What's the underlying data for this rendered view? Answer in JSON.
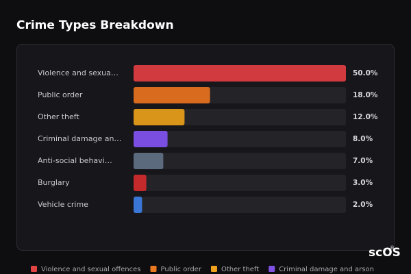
{
  "chart_data": {
    "type": "bar",
    "orientation": "horizontal",
    "title": "Crime Types Breakdown",
    "categories": [
      "Violence and sexua…",
      "Public order",
      "Other theft",
      "Criminal damage an…",
      "Anti-social behavi…",
      "Burglary",
      "Vehicle crime"
    ],
    "values": [
      50,
      18,
      12,
      8,
      7,
      3,
      2
    ],
    "value_labels": [
      "50.0%",
      "18.0%",
      "12.0%",
      "8.0%",
      "7.0%",
      "3.0%",
      "2.0%"
    ],
    "colors": [
      "#d13b40",
      "#d86b1e",
      "#d9951a",
      "#7a4ee0",
      "#5c6a7e",
      "#c42a2c",
      "#3a76d6"
    ],
    "xlim": [
      0,
      50
    ],
    "legend": [
      {
        "name": "Violence and sexual offences",
        "color": "#e04444"
      },
      {
        "name": "Public order",
        "color": "#ea7a22"
      },
      {
        "name": "Other theft",
        "color": "#f0a21e"
      },
      {
        "name": "Criminal damage and arson",
        "color": "#8052e4"
      }
    ],
    "watermark": "scOS",
    "watermark_mark": "®"
  }
}
